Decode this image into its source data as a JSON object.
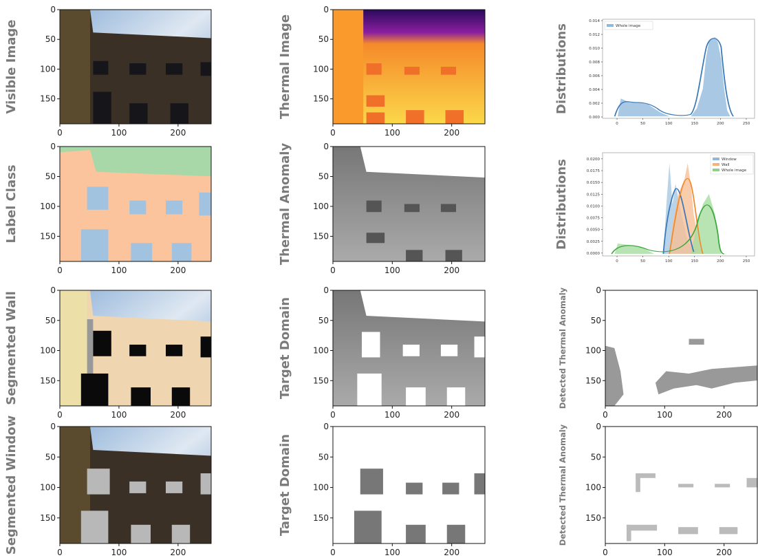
{
  "panels": [
    {
      "ylabel": "Visible Image",
      "xlim": [
        0,
        256
      ],
      "ylim": [
        192,
        0
      ],
      "xticks": [
        0,
        100,
        200
      ],
      "yticks": [
        0,
        50,
        100,
        150
      ]
    },
    {
      "ylabel": "Thermal Image",
      "xlim": [
        0,
        256
      ],
      "ylim": [
        192,
        0
      ],
      "xticks": [
        0,
        100,
        200
      ],
      "yticks": [
        0,
        50,
        100,
        150
      ]
    },
    {
      "ylabel": "Distributions",
      "xlim": [
        -28,
        266
      ],
      "ylim": [
        -0.0002,
        0.0142
      ],
      "xticks": [
        0,
        50,
        100,
        150,
        200,
        250
      ],
      "yticks": [
        {
          "value": 0,
          "label": "0.000"
        },
        {
          "value": 0.002,
          "label": "0.002"
        },
        {
          "value": 0.004,
          "label": "0.004"
        },
        {
          "value": 0.006,
          "label": "0.006"
        },
        {
          "value": 0.008,
          "label": "0.008"
        },
        {
          "value": 0.01,
          "label": "0.010"
        },
        {
          "value": 0.012,
          "label": "0.012"
        },
        {
          "value": 0.014,
          "label": "0.014"
        }
      ],
      "legend": [
        {
          "name": "Whole image",
          "color": "#8fb8dc"
        }
      ]
    },
    {
      "ylabel": "Label Class",
      "xlim": [
        0,
        256
      ],
      "ylim": [
        192,
        0
      ],
      "xticks": [
        0,
        100,
        200
      ],
      "yticks": [
        0,
        50,
        100,
        150
      ]
    },
    {
      "ylabel": "Thermal Anomaly",
      "xlim": [
        0,
        256
      ],
      "ylim": [
        192,
        0
      ],
      "xticks": [
        0,
        100,
        200
      ],
      "yticks": [
        0,
        50,
        100,
        150
      ]
    },
    {
      "ylabel": "Distributions",
      "xlim": [
        -28,
        266
      ],
      "ylim": [
        -0.0006,
        0.0213
      ],
      "xticks": [
        0,
        50,
        100,
        150,
        200,
        250
      ],
      "yticks": [
        {
          "value": 0,
          "label": "0.0000"
        },
        {
          "value": 0.0025,
          "label": "0.0025"
        },
        {
          "value": 0.005,
          "label": "0.0050"
        },
        {
          "value": 0.0075,
          "label": "0.0075"
        },
        {
          "value": 0.01,
          "label": "0.0100"
        },
        {
          "value": 0.0125,
          "label": "0.0125"
        },
        {
          "value": 0.015,
          "label": "0.0150"
        },
        {
          "value": 0.0175,
          "label": "0.0175"
        },
        {
          "value": 0.02,
          "label": "0.0200"
        }
      ],
      "legend": [
        {
          "name": "Window",
          "color": "#8fb8dc"
        },
        {
          "name": "Wall",
          "color": "#f7b27a"
        },
        {
          "name": "Whole image",
          "color": "#8fd08a"
        }
      ]
    },
    {
      "ylabel": "Segmented Wall",
      "xlim": [
        0,
        256
      ],
      "ylim": [
        192,
        0
      ],
      "xticks": [
        0,
        100,
        200
      ],
      "yticks": [
        0,
        50,
        100,
        150
      ]
    },
    {
      "ylabel": "Target Domain",
      "xlim": [
        0,
        256
      ],
      "ylim": [
        192,
        0
      ],
      "xticks": [
        0,
        100,
        200
      ],
      "yticks": [
        0,
        50,
        100,
        150
      ]
    },
    {
      "ylabel": "Detected Thermal Anomaly",
      "xlim": [
        0,
        256
      ],
      "ylim": [
        192,
        0
      ],
      "xticks": [
        0,
        100,
        200
      ],
      "yticks": [
        0,
        50,
        100,
        150
      ]
    },
    {
      "ylabel": "Segmented Window",
      "xlim": [
        0,
        256
      ],
      "ylim": [
        192,
        0
      ],
      "xticks": [
        0,
        100,
        200
      ],
      "yticks": [
        0,
        50,
        100,
        150
      ]
    },
    {
      "ylabel": "Target Domain",
      "xlim": [
        0,
        256
      ],
      "ylim": [
        192,
        0
      ],
      "xticks": [
        0,
        100,
        200
      ],
      "yticks": [
        0,
        50,
        100,
        150
      ]
    },
    {
      "ylabel": "Detected Thermal Anomaly",
      "xlim": [
        0,
        256
      ],
      "ylim": [
        192,
        0
      ],
      "xticks": [
        0,
        100,
        200
      ],
      "yticks": [
        0,
        50,
        100,
        150
      ]
    }
  ]
}
